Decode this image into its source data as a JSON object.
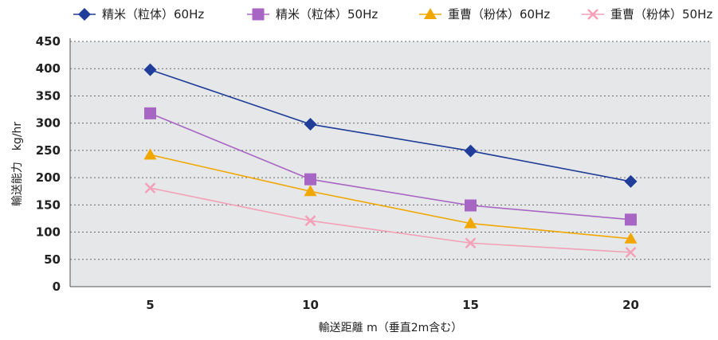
{
  "chart_data": {
    "type": "line",
    "xlabel": "輸送距離 m（垂直2m含む）",
    "ylabel": "輸送能力　kg/hr",
    "x": [
      5,
      10,
      15,
      20
    ],
    "ylim": [
      0,
      450
    ],
    "yticks": [
      0,
      50,
      100,
      150,
      200,
      250,
      300,
      350,
      400,
      450
    ],
    "grid": true,
    "legend_position": "top",
    "series": [
      {
        "name": "精米（粒体）60Hz",
        "values": [
          398,
          298,
          249,
          193
        ],
        "color": "#1f3d99",
        "marker": "diamond"
      },
      {
        "name": "精米（粒体）50Hz",
        "values": [
          318,
          197,
          149,
          123
        ],
        "color": "#a866c4",
        "marker": "square"
      },
      {
        "name": "重曹（粉体）60Hz",
        "values": [
          242,
          175,
          116,
          88
        ],
        "color": "#f0a800",
        "marker": "triangle"
      },
      {
        "name": "重曹（粉体）50Hz",
        "values": [
          181,
          121,
          80,
          63
        ],
        "color": "#f4a0b8",
        "marker": "x"
      }
    ]
  }
}
